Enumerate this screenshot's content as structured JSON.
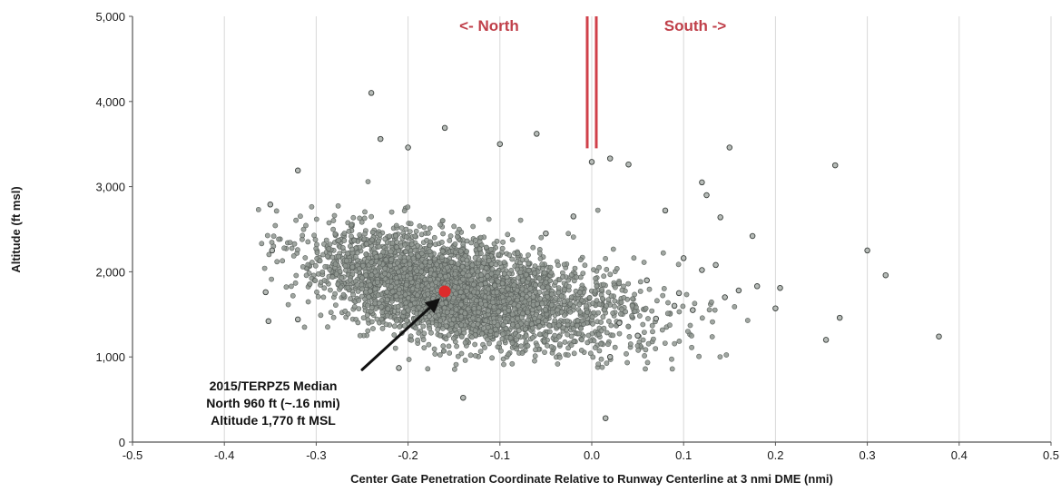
{
  "chart_data": {
    "type": "scatter",
    "title": "",
    "xlabel": "Center Gate Penetration Coordinate Relative to Runway Centerline at 3 nmi DME (nmi)",
    "ylabel": "Altitude (ft msl)",
    "xlim": [
      -0.5,
      0.5
    ],
    "ylim": [
      0,
      5000
    ],
    "x_ticks": [
      "-0.5",
      "-0.4",
      "-0.3",
      "-0.2",
      "-0.1",
      "0.0",
      "0.1",
      "0.2",
      "0.3",
      "0.4",
      "0.5"
    ],
    "y_ticks": [
      "0",
      "1,000",
      "2,000",
      "3,000",
      "4,000",
      "5,000"
    ],
    "vertical_gridlines": true,
    "horizontal_gridlines": false,
    "direction_labels": {
      "north": "<- North",
      "south": "South ->"
    },
    "centerline_marker": {
      "x": 0.0,
      "y_from": 3450,
      "y_to": 5000,
      "color": "#d0404a"
    },
    "series": [
      {
        "point_color": "#8f9690",
        "point_edge": "#5a605c",
        "cluster": {
          "note": "dense cloud of several thousand approach points, rendered as gaussian cloud",
          "count": 3600,
          "center_x": -0.17,
          "center_y": 1800,
          "sd_x": 0.065,
          "sd_y": 330
        },
        "points": [
          [
            -0.24,
            4100
          ],
          [
            -0.16,
            3690
          ],
          [
            -0.06,
            3620
          ],
          [
            -0.1,
            3500
          ],
          [
            -0.2,
            3460
          ],
          [
            -0.23,
            3560
          ],
          [
            -0.32,
            3190
          ],
          [
            -0.35,
            2790
          ],
          [
            -0.348,
            2250
          ],
          [
            -0.355,
            1760
          ],
          [
            -0.352,
            1420
          ],
          [
            -0.32,
            1440
          ],
          [
            -0.21,
            870
          ],
          [
            -0.14,
            520
          ],
          [
            0.015,
            280
          ],
          [
            0.0,
            3290
          ],
          [
            0.02,
            3330
          ],
          [
            0.04,
            3260
          ],
          [
            0.15,
            3460
          ],
          [
            0.12,
            3050
          ],
          [
            0.125,
            2900
          ],
          [
            0.08,
            2720
          ],
          [
            0.14,
            2640
          ],
          [
            0.175,
            2420
          ],
          [
            0.1,
            2160
          ],
          [
            0.12,
            2020
          ],
          [
            0.135,
            2080
          ],
          [
            0.16,
            1780
          ],
          [
            0.18,
            1830
          ],
          [
            0.2,
            1570
          ],
          [
            0.205,
            1810
          ],
          [
            0.265,
            3250
          ],
          [
            0.3,
            2250
          ],
          [
            0.32,
            1960
          ],
          [
            0.27,
            1460
          ],
          [
            0.255,
            1200
          ],
          [
            0.378,
            1240
          ],
          [
            0.06,
            1900
          ],
          [
            0.09,
            1600
          ],
          [
            0.11,
            1550
          ],
          [
            0.07,
            1450
          ],
          [
            0.05,
            1250
          ],
          [
            0.03,
            1400
          ],
          [
            -0.02,
            2650
          ],
          [
            -0.05,
            2450
          ],
          [
            0.02,
            1000
          ],
          [
            0.145,
            1700
          ],
          [
            0.095,
            1750
          ]
        ]
      }
    ],
    "median_point": {
      "x": -0.16,
      "y": 1770,
      "color": "#dd2a2a"
    },
    "annotation": {
      "lines": [
        "2015/TERPZ5 Median",
        "North 960 ft (~.16 nmi)",
        "Altitude 1,770 ft MSL"
      ],
      "arrow_from": [
        -0.25,
        850
      ],
      "arrow_to": [
        -0.165,
        1690
      ]
    }
  }
}
